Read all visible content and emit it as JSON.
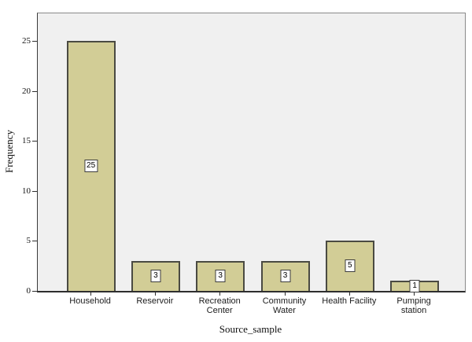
{
  "chart_data": {
    "type": "bar",
    "title": "",
    "xlabel": "Source_sample",
    "ylabel": "Frequency",
    "categories": [
      "Household",
      "Reservoir",
      "Recreation\nCenter",
      "Community\nWater",
      "Health Facility",
      "Pumping\nstation"
    ],
    "values": [
      25,
      3,
      3,
      3,
      5,
      1
    ],
    "bar_labels": [
      "25",
      "3",
      "3",
      "3",
      "5",
      "1"
    ],
    "yticks": [
      0,
      5,
      10,
      15,
      20,
      25
    ],
    "ylim": [
      0,
      27.8
    ],
    "grid": false,
    "legend": null,
    "colors": {
      "bar_fill": "#d2cd96",
      "bar_border": "#4a4a42",
      "plot_background": "#f0f0f0",
      "frame_border": "#8a8a8a",
      "axis_line": "#2e2e2e",
      "label_box_background": "#ffffff",
      "label_box_border": "#3c3c3c"
    }
  }
}
